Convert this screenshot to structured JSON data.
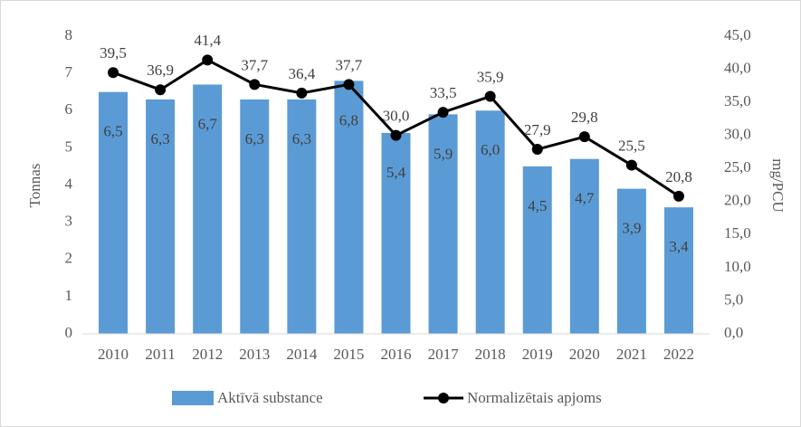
{
  "chart_data": {
    "type": "combo",
    "categories": [
      "2010",
      "2011",
      "2012",
      "2013",
      "2014",
      "2015",
      "2016",
      "2017",
      "2018",
      "2019",
      "2020",
      "2021",
      "2022"
    ],
    "series": [
      {
        "name": "Aktīvā substance",
        "type": "bar",
        "color": "#5b9bd5",
        "values": [
          6.5,
          6.3,
          6.7,
          6.3,
          6.3,
          6.8,
          5.4,
          5.9,
          6.0,
          4.5,
          4.7,
          3.9,
          3.4
        ],
        "value_labels": [
          "6,5",
          "6,3",
          "6,7",
          "6,3",
          "6,3",
          "6,8",
          "5,4",
          "5,9",
          "6,0",
          "4,5",
          "4,7",
          "3,9",
          "3,4"
        ]
      },
      {
        "name": "Normalizētais apjoms",
        "type": "line",
        "axis": "y2",
        "color": "#000000",
        "values": [
          39.5,
          36.9,
          41.4,
          37.7,
          36.4,
          37.7,
          30.0,
          33.5,
          35.9,
          27.9,
          29.8,
          25.5,
          20.8
        ],
        "value_labels": [
          "39,5",
          "36,9",
          "41,4",
          "37,7",
          "36,4",
          "37,7",
          "30,0",
          "33,5",
          "35,9",
          "27,9",
          "29,8",
          "25,5",
          "20,8"
        ]
      }
    ],
    "ylabel": "Tonnas",
    "y2label": "mg/PCU",
    "ylim": [
      0,
      8
    ],
    "yticks": [
      0,
      1,
      2,
      3,
      4,
      5,
      6,
      7,
      8
    ],
    "y2lim": [
      0,
      45
    ],
    "y2ticks": [
      {
        "value": 0,
        "label": "0,0"
      },
      {
        "value": 5,
        "label": "5,0"
      },
      {
        "value": 10,
        "label": "10,0"
      },
      {
        "value": 15,
        "label": "15,0"
      },
      {
        "value": 20,
        "label": "20,0"
      },
      {
        "value": 25,
        "label": "25,0"
      },
      {
        "value": 30,
        "label": "30,0"
      },
      {
        "value": 35,
        "label": "35,0"
      },
      {
        "value": 40,
        "label": "40,0"
      },
      {
        "value": 45,
        "label": "45,0"
      }
    ],
    "grid": false,
    "legend": "bottom"
  }
}
